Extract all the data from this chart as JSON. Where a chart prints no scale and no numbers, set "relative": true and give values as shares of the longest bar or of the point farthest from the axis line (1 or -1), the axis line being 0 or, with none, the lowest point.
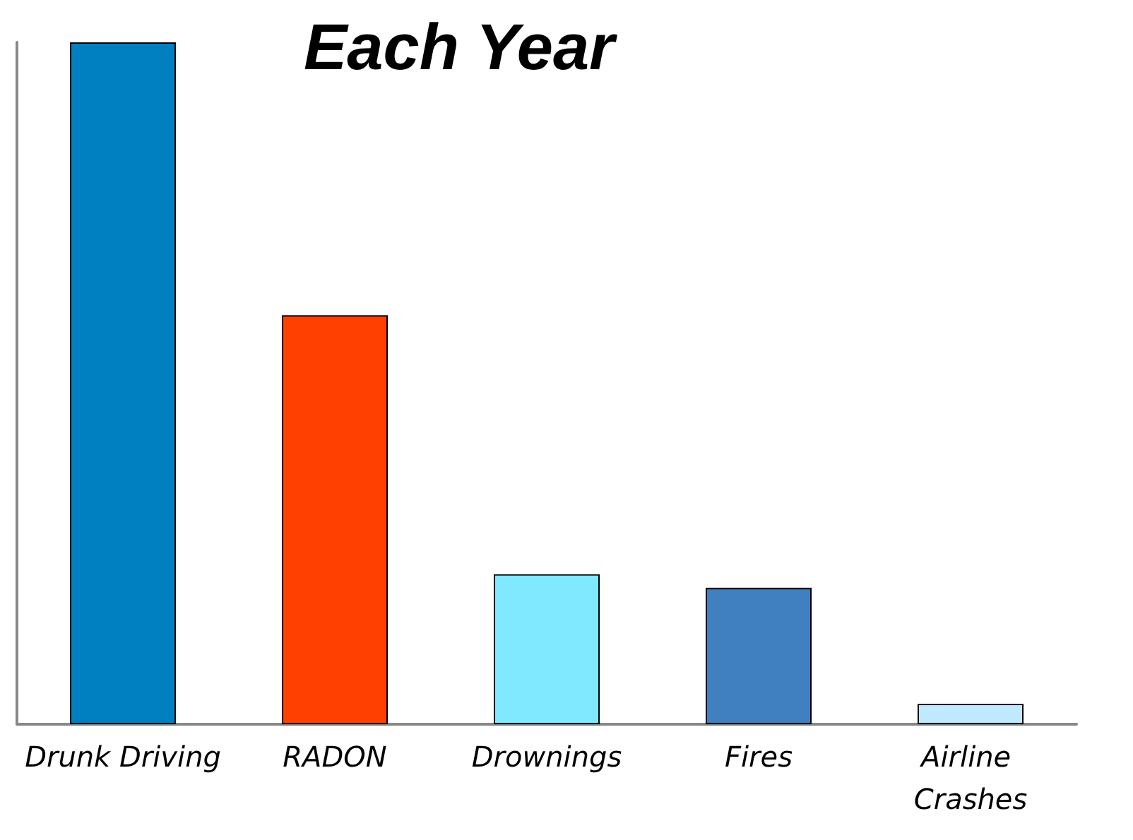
{
  "chart_data": {
    "type": "bar",
    "title": "Each Year",
    "relative": true,
    "categories": [
      "Drunk Driving",
      "RADON",
      "Drownings",
      "Fires",
      "Airline Crashes"
    ],
    "values": [
      1,
      0.6,
      0.22,
      0.2,
      0.03
    ],
    "colors": [
      "#0080c0",
      "#ff4000",
      "#80e8ff",
      "#4080c0",
      "#c0e8ff"
    ],
    "data_labels": false
  }
}
